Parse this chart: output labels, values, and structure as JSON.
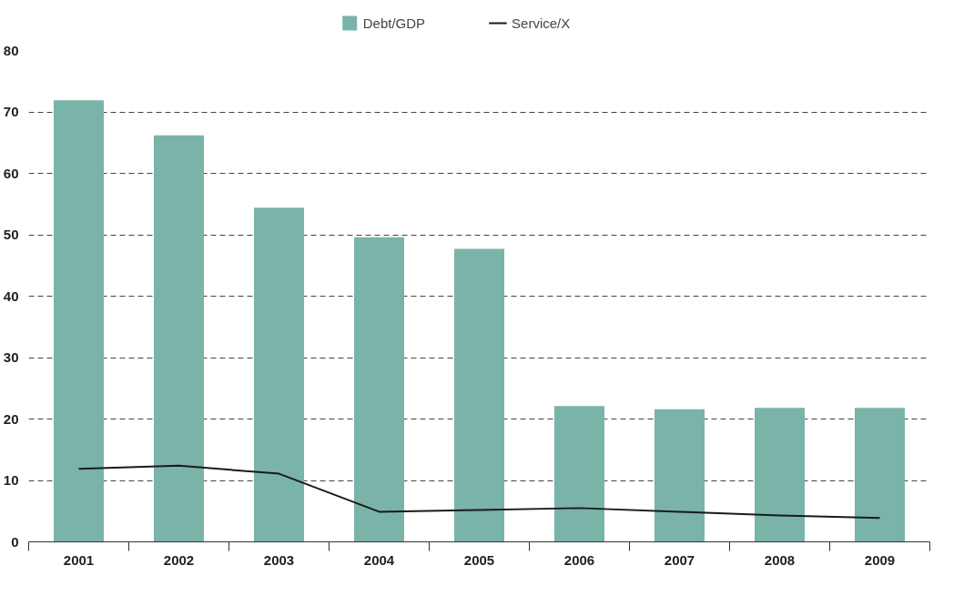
{
  "chart_data": {
    "type": "bar",
    "categories": [
      "2001",
      "2002",
      "2003",
      "2004",
      "2005",
      "2006",
      "2007",
      "2008",
      "2009"
    ],
    "series": [
      {
        "name": "Debt/GDP",
        "type": "bar",
        "color": "#7ab3a8",
        "values": [
          71.9,
          66.2,
          54.4,
          49.6,
          47.7,
          22.1,
          21.6,
          21.8,
          21.8
        ]
      },
      {
        "name": "Service/X",
        "type": "line",
        "color": "#1a1a1a",
        "values": [
          11.9,
          12.4,
          11.1,
          4.9,
          5.2,
          5.5,
          4.9,
          4.3,
          3.9
        ]
      }
    ],
    "ylim": [
      0,
      80
    ],
    "yticks": [
      0,
      10,
      20,
      30,
      40,
      50,
      60,
      70,
      80
    ],
    "grid": "y",
    "legend": "top",
    "line_style": "solid"
  }
}
